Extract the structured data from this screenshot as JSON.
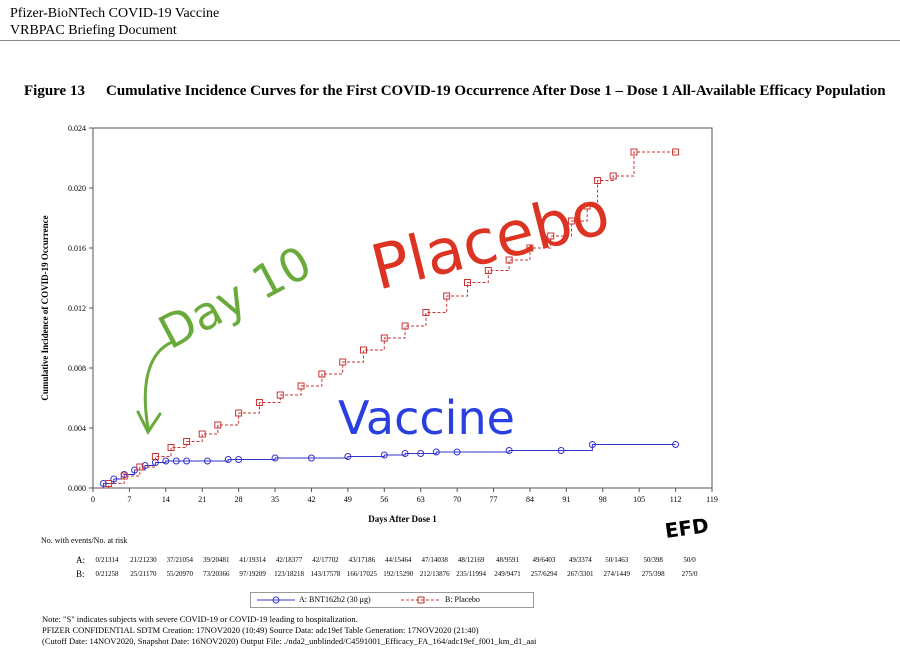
{
  "header": {
    "line1": "Pfizer-BioNTech COVID-19 Vaccine",
    "line2": "VRBPAC Briefing Document"
  },
  "figure": {
    "label": "Figure 13",
    "title": "Cumulative Incidence Curves for the First COVID-19 Occurrence After Dose 1 – Dose 1 All-Available Efficacy Population"
  },
  "chart_data": {
    "type": "line",
    "xlabel": "Days After Dose 1",
    "ylabel": "Cumulative Incidence of COVID-19 Occurrence",
    "xlim": [
      0,
      119
    ],
    "ylim": [
      0,
      0.024
    ],
    "x_ticks": [
      "0",
      "7",
      "14",
      "21",
      "28",
      "35",
      "42",
      "49",
      "56",
      "63",
      "70",
      "77",
      "84",
      "91",
      "98",
      "105",
      "112",
      "119"
    ],
    "y_ticks": [
      "0.000",
      "0.004",
      "0.008",
      "0.012",
      "0.016",
      "0.020",
      "0.024"
    ],
    "grid": false,
    "step": true,
    "series": [
      {
        "name": "A: BNT162b2 (30 μg)",
        "color": "#3333cc",
        "marker": "circle",
        "x": [
          0,
          2,
          4,
          6,
          8,
          10,
          12,
          14,
          16,
          18,
          22,
          26,
          28,
          35,
          42,
          49,
          56,
          60,
          63,
          66,
          70,
          80,
          90,
          96,
          112
        ],
        "y": [
          0,
          0.0003,
          0.0006,
          0.0009,
          0.0012,
          0.0015,
          0.0017,
          0.0018,
          0.0018,
          0.0018,
          0.0018,
          0.0019,
          0.0019,
          0.002,
          0.002,
          0.0021,
          0.0022,
          0.0023,
          0.0023,
          0.0024,
          0.0024,
          0.0025,
          0.0025,
          0.0029,
          0.0029
        ]
      },
      {
        "name": "B: Placebo",
        "color": "#cc3333",
        "marker": "square",
        "x": [
          0,
          3,
          6,
          9,
          12,
          15,
          18,
          21,
          24,
          28,
          32,
          36,
          40,
          44,
          48,
          52,
          56,
          60,
          64,
          68,
          72,
          76,
          80,
          84,
          88,
          92,
          95,
          97,
          100,
          104,
          112
        ],
        "y": [
          0,
          0.0003,
          0.0008,
          0.0014,
          0.0021,
          0.0027,
          0.0031,
          0.0036,
          0.0042,
          0.005,
          0.0057,
          0.0062,
          0.0068,
          0.0076,
          0.0084,
          0.0092,
          0.01,
          0.0108,
          0.0117,
          0.0128,
          0.0137,
          0.0145,
          0.0152,
          0.016,
          0.0168,
          0.0178,
          0.0188,
          0.0205,
          0.0208,
          0.0224,
          0.0224
        ]
      }
    ],
    "annotations": [
      "Day 10",
      "Placebo",
      "Vaccine",
      "EFD"
    ]
  },
  "risk_table": {
    "title": "No. with events/No. at risk",
    "rows": [
      {
        "label": "A:",
        "values": [
          "0/21314",
          "21/21230",
          "37/21054",
          "39/20481",
          "41/19314",
          "42/18377",
          "42/17702",
          "43/17186",
          "44/15464",
          "47/14038",
          "48/12169",
          "48/9591",
          "49/6403",
          "49/3374",
          "50/1463",
          "50/398",
          "50/0"
        ]
      },
      {
        "label": "B:",
        "values": [
          "0/21258",
          "25/21170",
          "55/20970",
          "73/20366",
          "97/19209",
          "123/18218",
          "143/17578",
          "166/17025",
          "192/15290",
          "212/13876",
          "235/11994",
          "249/9471",
          "257/6294",
          "267/3301",
          "274/1449",
          "275/398",
          "275/0"
        ]
      }
    ]
  },
  "legend": {
    "a": "A: BNT162b2 (30 μg)",
    "b": "B: Placebo"
  },
  "notes": {
    "line1": "Note: \"S\" indicates subjects with severe COVID-19 or COVID-19 leading to hospitalization.",
    "line2": "PFIZER CONFIDENTIAL  SDTM Creation: 17NOV2020 (10:49)  Source Data: adc19ef  Table Generation: 17NOV2020 (21:40)",
    "line3": "(Cutoff Date: 14NOV2020, Snapshot Date: 16NOV2020) Output File: ./nda2_unblinded/C4591001_Efficacy_FA_164/adc19ef_f001_km_d1_aai"
  }
}
